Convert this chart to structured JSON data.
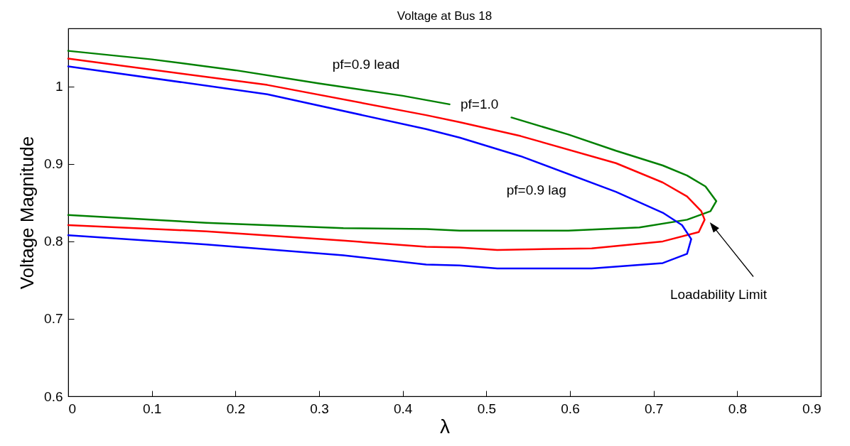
{
  "chart_data": {
    "type": "line",
    "title": "Voltage at Bus 18",
    "xlabel": "λ",
    "ylabel": "Voltage Magnitude",
    "xlim": [
      0,
      0.9
    ],
    "xticks": [
      0,
      0.1,
      0.2,
      0.3,
      0.4,
      0.5,
      0.6,
      0.7,
      0.8,
      0.9
    ],
    "ylim": [
      0.6,
      1.075
    ],
    "yticks": [
      0.6,
      0.7,
      0.8,
      0.9,
      1
    ],
    "grid": false,
    "marker": "none",
    "line_style": "solid",
    "series": [
      {
        "name": "pf=0.9 lead",
        "color": "#008000",
        "x": [
          0,
          0.1,
          0.2,
          0.3,
          0.4,
          0.456,
          0.49,
          0.53,
          0.598,
          0.655,
          0.711,
          0.74,
          0.762,
          0.775,
          0.768,
          0.74,
          0.683,
          0.598,
          0.513,
          0.468,
          0.428,
          0.329,
          0.165,
          0
        ],
        "values": [
          1.046,
          1.035,
          1.021,
          1.004,
          0.988,
          0.977,
          null,
          0.96,
          0.938,
          0.917,
          0.898,
          0.885,
          0.871,
          0.852,
          0.839,
          0.828,
          0.818,
          0.814,
          0.814,
          0.814,
          0.816,
          0.817,
          0.824,
          0.834
        ]
      },
      {
        "name": "pf=1.0",
        "color": "#ff0000",
        "x": [
          0,
          0.238,
          0.428,
          0.468,
          0.541,
          0.655,
          0.711,
          0.74,
          0.757,
          0.761,
          0.754,
          0.711,
          0.626,
          0.513,
          0.468,
          0.428,
          0.329,
          0.165,
          0
        ],
        "values": [
          1.036,
          1.002,
          0.963,
          0.954,
          0.936,
          0.901,
          0.876,
          0.858,
          0.839,
          0.828,
          0.812,
          0.8,
          0.791,
          0.789,
          0.792,
          0.793,
          0.801,
          0.813,
          0.821
        ]
      },
      {
        "name": "pf=0.9 lag",
        "color": "#0000ff",
        "x": [
          0,
          0.238,
          0.428,
          0.468,
          0.541,
          0.655,
          0.711,
          0.734,
          0.745,
          0.74,
          0.711,
          0.626,
          0.513,
          0.468,
          0.428,
          0.329,
          0.165,
          0
        ],
        "values": [
          1.026,
          0.99,
          0.945,
          0.934,
          0.91,
          0.864,
          0.837,
          0.821,
          0.803,
          0.784,
          0.772,
          0.765,
          0.765,
          0.769,
          0.77,
          0.782,
          0.796,
          0.808
        ]
      }
    ],
    "annotations": [
      "Loadability Limit"
    ]
  }
}
